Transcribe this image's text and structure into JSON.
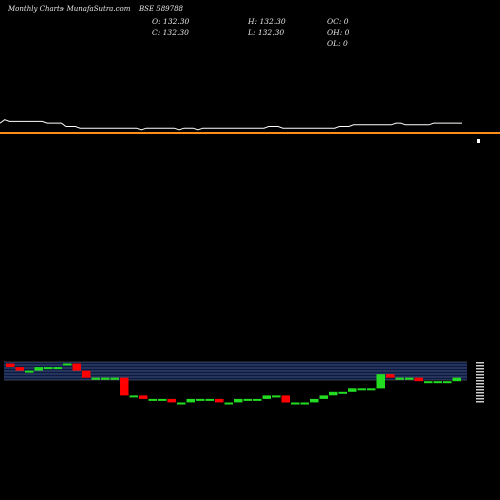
{
  "header": {
    "site_left": "Monthly Charts",
    "site_mid": "- MunafaSutra.com",
    "symbol": "BSE 589788"
  },
  "ohlc": {
    "o": "O: 132.30",
    "c": "C: 132.30",
    "h": "H: 132.30",
    "l": "L: 132.30",
    "oc": "OC: 0",
    "oh": "OH: 0",
    "ol": "OL: 0"
  },
  "colors": {
    "bg": "#000000",
    "price_line": "#ffffff",
    "level_line": "#ff8c1a",
    "up": "#22dd22",
    "down": "#ff0000",
    "panel": "#0a1a44",
    "grid": "#ffffff"
  },
  "chart_data": [
    {
      "type": "line",
      "series": [
        {
          "values": [
            127,
            129,
            128,
            128,
            128,
            128,
            128,
            128,
            128,
            128,
            127,
            127,
            127,
            127,
            125,
            125,
            125,
            124,
            124,
            124,
            124,
            124,
            124,
            124,
            124,
            124,
            124,
            124,
            124,
            124,
            123,
            124,
            124,
            124,
            124,
            124,
            124,
            124,
            123,
            124,
            124,
            124,
            123,
            124,
            124,
            124,
            124,
            124,
            124,
            124,
            124,
            124,
            124,
            124,
            124,
            124,
            124,
            125,
            125,
            125,
            124,
            124,
            124,
            124,
            124,
            124,
            124,
            124,
            124,
            124,
            124,
            124,
            125,
            125,
            125,
            126,
            126,
            126,
            126,
            126,
            126,
            126,
            126,
            126,
            127,
            127,
            126,
            126,
            126,
            126,
            126,
            126,
            127,
            127,
            127,
            127,
            127,
            127,
            127
          ]
        }
      ],
      "reference_level": 132.3
    },
    {
      "type": "candlestick",
      "candles": [
        {
          "o": 86,
          "c": 85
        },
        {
          "o": 85,
          "c": 84
        },
        {
          "o": 84,
          "c": 84
        },
        {
          "o": 84,
          "c": 85
        },
        {
          "o": 85,
          "c": 85
        },
        {
          "o": 85,
          "c": 85
        },
        {
          "o": 86,
          "c": 86
        },
        {
          "o": 86,
          "c": 84
        },
        {
          "o": 84,
          "c": 82
        },
        {
          "o": 82,
          "c": 82
        },
        {
          "o": 82,
          "c": 82
        },
        {
          "o": 82,
          "c": 82
        },
        {
          "o": 82,
          "c": 77
        },
        {
          "o": 77,
          "c": 77
        },
        {
          "o": 77,
          "c": 76
        },
        {
          "o": 76,
          "c": 76
        },
        {
          "o": 76,
          "c": 76
        },
        {
          "o": 76,
          "c": 75
        },
        {
          "o": 75,
          "c": 75
        },
        {
          "o": 75,
          "c": 76
        },
        {
          "o": 76,
          "c": 76
        },
        {
          "o": 76,
          "c": 76
        },
        {
          "o": 76,
          "c": 75
        },
        {
          "o": 75,
          "c": 75
        },
        {
          "o": 75,
          "c": 76
        },
        {
          "o": 76,
          "c": 76
        },
        {
          "o": 76,
          "c": 76
        },
        {
          "o": 76,
          "c": 77
        },
        {
          "o": 77,
          "c": 77
        },
        {
          "o": 77,
          "c": 75
        },
        {
          "o": 75,
          "c": 75
        },
        {
          "o": 75,
          "c": 75
        },
        {
          "o": 75,
          "c": 76
        },
        {
          "o": 76,
          "c": 77
        },
        {
          "o": 77,
          "c": 78
        },
        {
          "o": 78,
          "c": 78
        },
        {
          "o": 78,
          "c": 79
        },
        {
          "o": 79,
          "c": 79
        },
        {
          "o": 79,
          "c": 79
        },
        {
          "o": 79,
          "c": 83
        },
        {
          "o": 83,
          "c": 82
        },
        {
          "o": 82,
          "c": 82
        },
        {
          "o": 82,
          "c": 82
        },
        {
          "o": 82,
          "c": 81
        },
        {
          "o": 81,
          "c": 81
        },
        {
          "o": 81,
          "c": 81
        },
        {
          "o": 81,
          "c": 81
        },
        {
          "o": 81,
          "c": 82
        }
      ]
    }
  ]
}
